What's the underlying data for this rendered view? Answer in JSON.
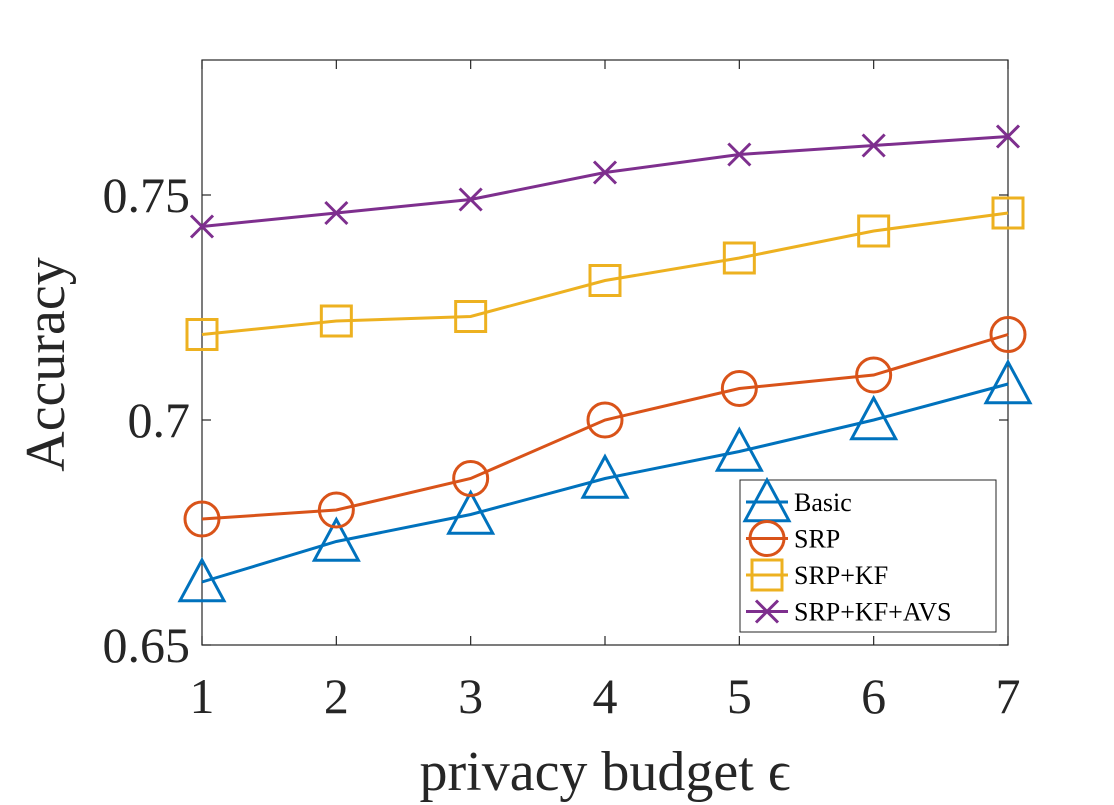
{
  "chart_data": {
    "type": "line",
    "title": "",
    "xlabel": "privacy budget ϵ",
    "ylabel": "Accuracy",
    "x": [
      1,
      2,
      3,
      4,
      5,
      6,
      7
    ],
    "xlim": [
      1,
      7
    ],
    "ylim": [
      0.65,
      0.78
    ],
    "xticks": [
      "1",
      "2",
      "3",
      "4",
      "5",
      "6",
      "7"
    ],
    "yticks": [
      {
        "value": 0.65,
        "label": "0.65"
      },
      {
        "value": 0.7,
        "label": "0.7"
      },
      {
        "value": 0.75,
        "label": "0.75"
      }
    ],
    "grid": false,
    "legend_position": "bottom-right",
    "series": [
      {
        "name": "Basic",
        "color": "#0072BD",
        "marker": "triangle",
        "values": [
          0.664,
          0.673,
          0.679,
          0.687,
          0.693,
          0.7,
          0.708
        ]
      },
      {
        "name": "SRP",
        "color": "#D95319",
        "marker": "circle",
        "values": [
          0.678,
          0.68,
          0.687,
          0.7,
          0.707,
          0.71,
          0.719
        ]
      },
      {
        "name": "SRP+KF",
        "color": "#EDB120",
        "marker": "square",
        "values": [
          0.719,
          0.722,
          0.723,
          0.731,
          0.736,
          0.742,
          0.746
        ]
      },
      {
        "name": "SRP+KF+AVS",
        "color": "#7E2F8E",
        "marker": "x",
        "values": [
          0.743,
          0.746,
          0.749,
          0.755,
          0.759,
          0.761,
          0.763
        ]
      }
    ]
  }
}
